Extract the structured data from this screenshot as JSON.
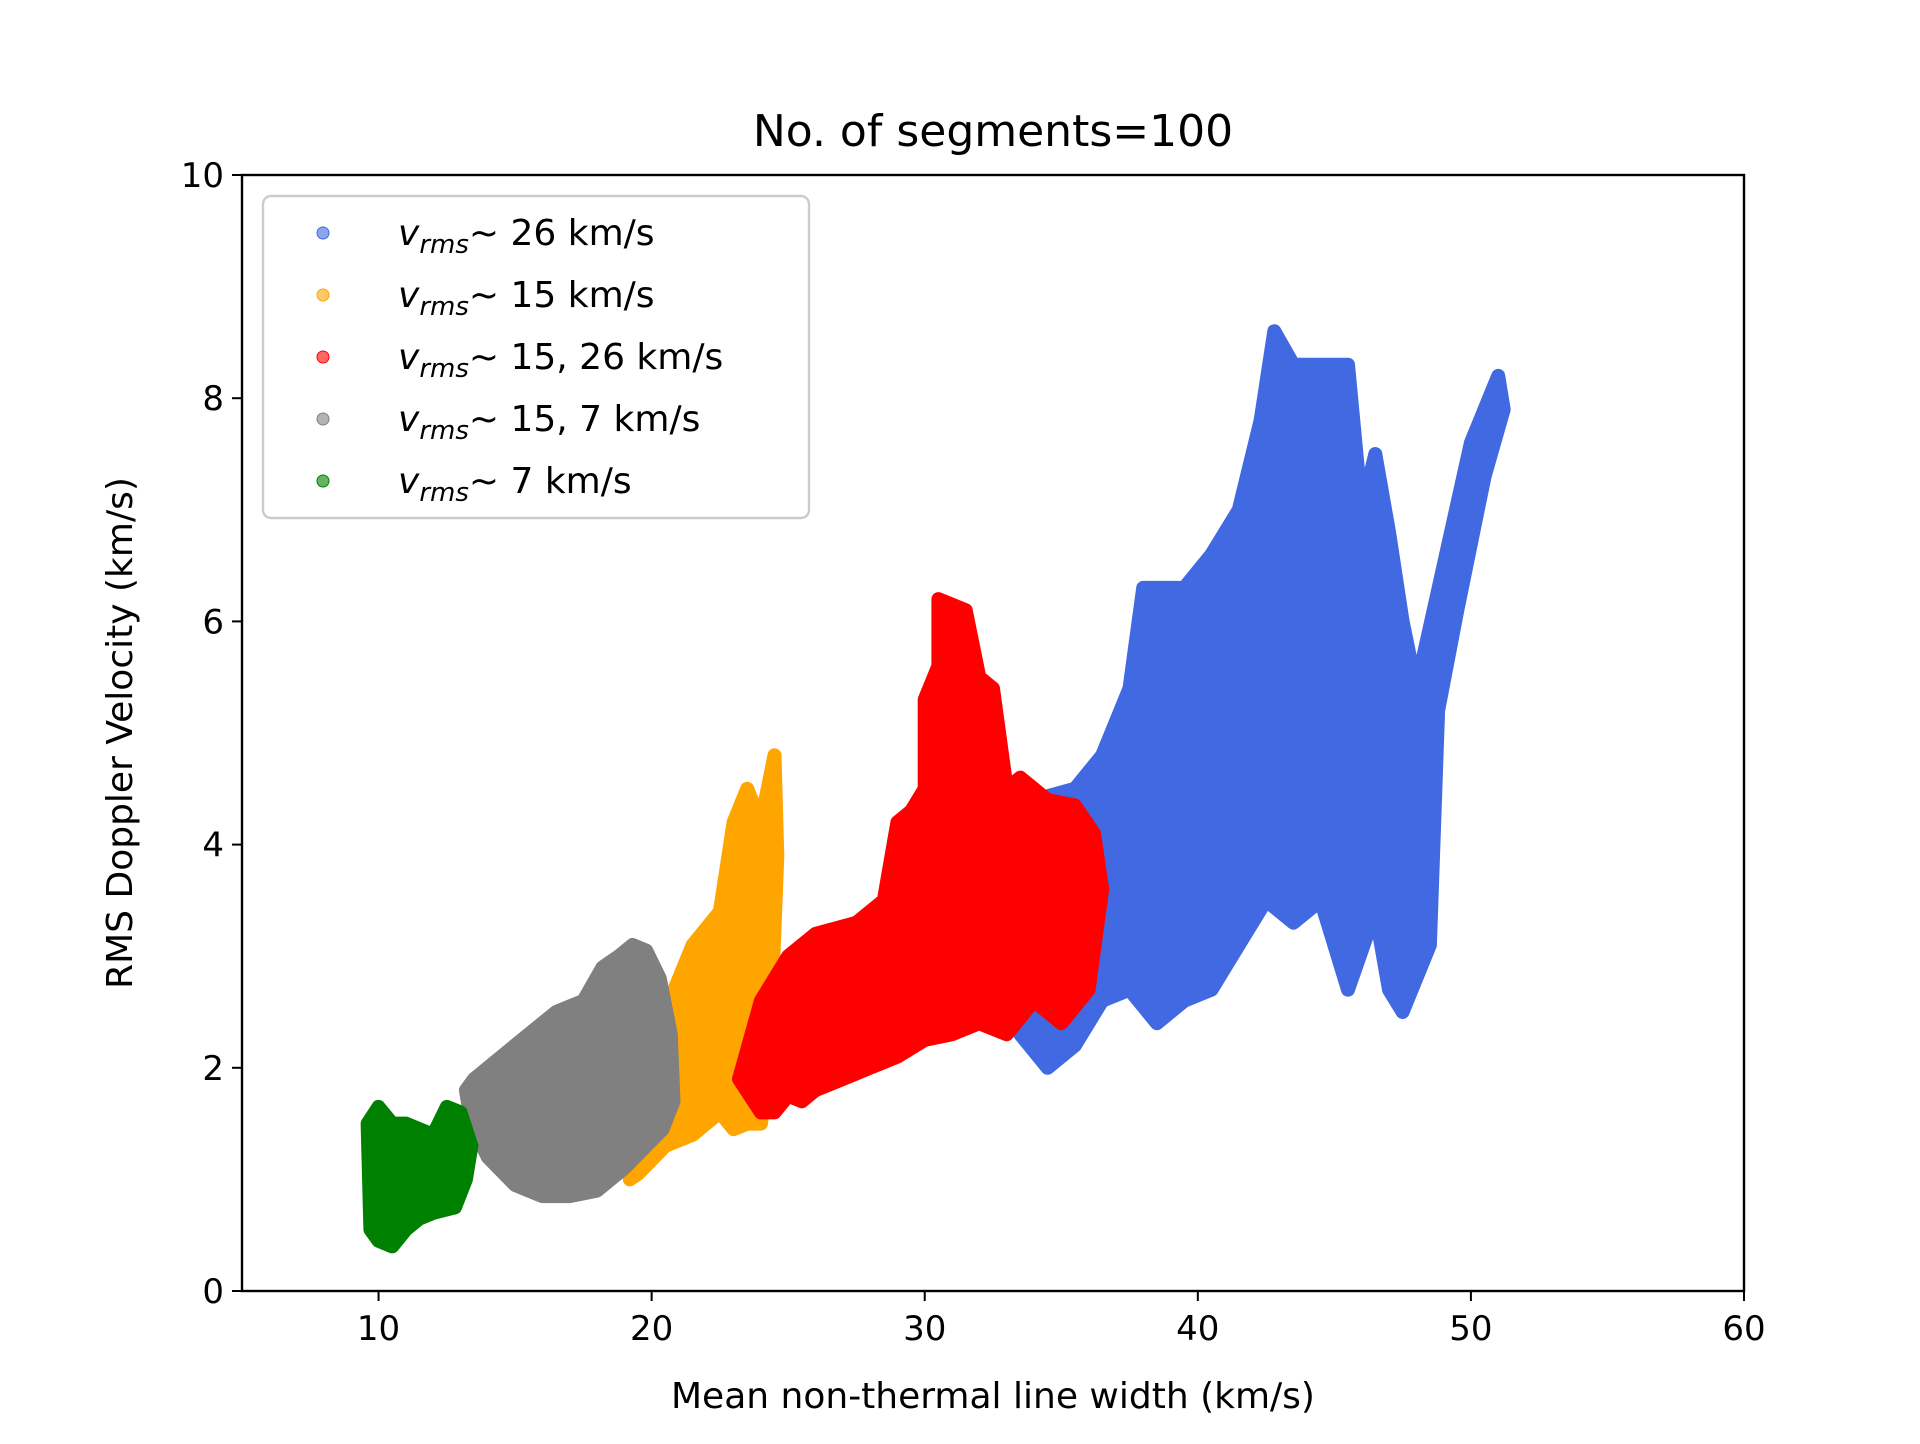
{
  "chart_data": {
    "type": "scatter",
    "title": "No. of segments=100",
    "xlabel": "Mean non-thermal line width (km/s)",
    "ylabel": "RMS Doppler Velocity (km/s)",
    "xlim": [
      5,
      60
    ],
    "ylim": [
      0,
      10
    ],
    "xticks": [
      "10",
      "20",
      "30",
      "40",
      "50",
      "60"
    ],
    "yticks": [
      "0",
      "2",
      "4",
      "6",
      "8",
      "10"
    ],
    "grid": false,
    "legend_position": "top-left",
    "series": [
      {
        "name": "v_rms ~ 26 km/s",
        "legend_symbol": "v",
        "legend_subscript": "rms",
        "legend_value": "~  26 km/s",
        "color": "#4169e1",
        "region": {
          "x": [
            33.5,
            34.0,
            35.5,
            36.5,
            37.5,
            38.0,
            39.5,
            40.5,
            41.5,
            42.3,
            42.8,
            43.5,
            44.5,
            45.5,
            46.0,
            46.5,
            47.0,
            47.5,
            48.0,
            49.0,
            50.0,
            51.0,
            51.2,
            50.5,
            49.5,
            48.8,
            48.5,
            47.5,
            47.0,
            46.5,
            45.5,
            44.5,
            43.5,
            42.5,
            41.5,
            40.5,
            39.5,
            38.5,
            37.5,
            36.5,
            35.5,
            34.5
          ],
          "y": [
            2.3,
            4.4,
            4.5,
            4.8,
            5.4,
            6.3,
            6.3,
            6.6,
            7.0,
            7.8,
            8.6,
            8.3,
            8.3,
            8.3,
            7.0,
            7.5,
            6.8,
            6.0,
            5.4,
            6.5,
            7.6,
            8.2,
            7.9,
            7.3,
            6.1,
            5.2,
            3.1,
            2.5,
            2.7,
            3.4,
            2.7,
            3.5,
            3.3,
            3.5,
            3.1,
            2.7,
            2.6,
            2.4,
            2.7,
            2.6,
            2.2,
            2.0
          ]
        }
      },
      {
        "name": "v_rms ~ 15 km/s",
        "legend_symbol": "v",
        "legend_subscript": "rms",
        "legend_value": "~  15 km/s",
        "color": "#ffa500",
        "region": {
          "x": [
            19.2,
            20.5,
            21.5,
            22.5,
            23.0,
            23.5,
            24.0,
            24.5,
            24.6,
            24.3,
            24.0,
            23.5,
            23.0,
            22.5,
            21.5,
            20.5,
            19.5
          ],
          "y": [
            1.0,
            2.5,
            3.1,
            3.4,
            4.2,
            4.5,
            4.2,
            4.8,
            3.9,
            2.0,
            1.5,
            1.5,
            1.45,
            1.6,
            1.4,
            1.3,
            1.05
          ]
        }
      },
      {
        "name": "v_rms ~ 15, 26 km/s",
        "legend_symbol": "v",
        "legend_subscript": "rms",
        "legend_value": "~  15, 26 km/s",
        "color": "#ff0000",
        "region": {
          "x": [
            23.2,
            24.0,
            25.0,
            26.0,
            27.5,
            28.5,
            29.0,
            29.5,
            30.0,
            30.0,
            30.5,
            30.5,
            31.5,
            32.0,
            32.5,
            33.0,
            33.5,
            34.5,
            35.5,
            36.2,
            36.5,
            36.0,
            35.0,
            34.0,
            33.0,
            32.0,
            31.0,
            30.0,
            29.0,
            28.0,
            27.0,
            26.0,
            25.5,
            25.0,
            24.5,
            24.0
          ],
          "y": [
            1.9,
            2.6,
            3.0,
            3.2,
            3.3,
            3.5,
            4.2,
            4.3,
            4.5,
            5.3,
            5.6,
            6.2,
            6.1,
            5.5,
            5.4,
            4.5,
            4.6,
            4.4,
            4.35,
            4.1,
            3.6,
            2.7,
            2.4,
            2.6,
            2.3,
            2.4,
            2.3,
            2.25,
            2.1,
            2.0,
            1.9,
            1.8,
            1.7,
            1.75,
            1.6,
            1.6
          ]
        }
      },
      {
        "name": "v_rms ~ 15, 7 km/s",
        "legend_symbol": "v",
        "legend_subscript": "rms",
        "legend_value": "~  15, 7 km/s",
        "color": "#808080",
        "region": {
          "x": [
            13.2,
            13.5,
            14.5,
            15.5,
            16.5,
            17.5,
            18.2,
            18.8,
            19.3,
            19.8,
            20.3,
            20.7,
            20.8,
            20.4,
            19.8,
            19.0,
            18.0,
            17.0,
            16.0,
            15.0,
            14.0,
            13.4
          ],
          "y": [
            1.8,
            1.9,
            2.1,
            2.3,
            2.5,
            2.6,
            2.9,
            3.0,
            3.1,
            3.05,
            2.8,
            2.3,
            1.7,
            1.45,
            1.3,
            1.1,
            0.9,
            0.85,
            0.85,
            0.95,
            1.2,
            1.5
          ]
        }
      },
      {
        "name": "v_rms ~ 7 km/s",
        "legend_symbol": "v",
        "legend_subscript": "rms",
        "legend_value": "~  7 km/s",
        "color": "#008000",
        "region": {
          "x": [
            9.6,
            10.0,
            10.5,
            11.0,
            12.0,
            12.5,
            13.0,
            13.4,
            13.2,
            12.8,
            12.0,
            11.5,
            11.0,
            10.5,
            10.0,
            9.7
          ],
          "y": [
            1.5,
            1.65,
            1.5,
            1.5,
            1.4,
            1.65,
            1.6,
            1.3,
            1.0,
            0.75,
            0.7,
            0.65,
            0.55,
            0.4,
            0.45,
            0.55
          ]
        }
      }
    ]
  }
}
